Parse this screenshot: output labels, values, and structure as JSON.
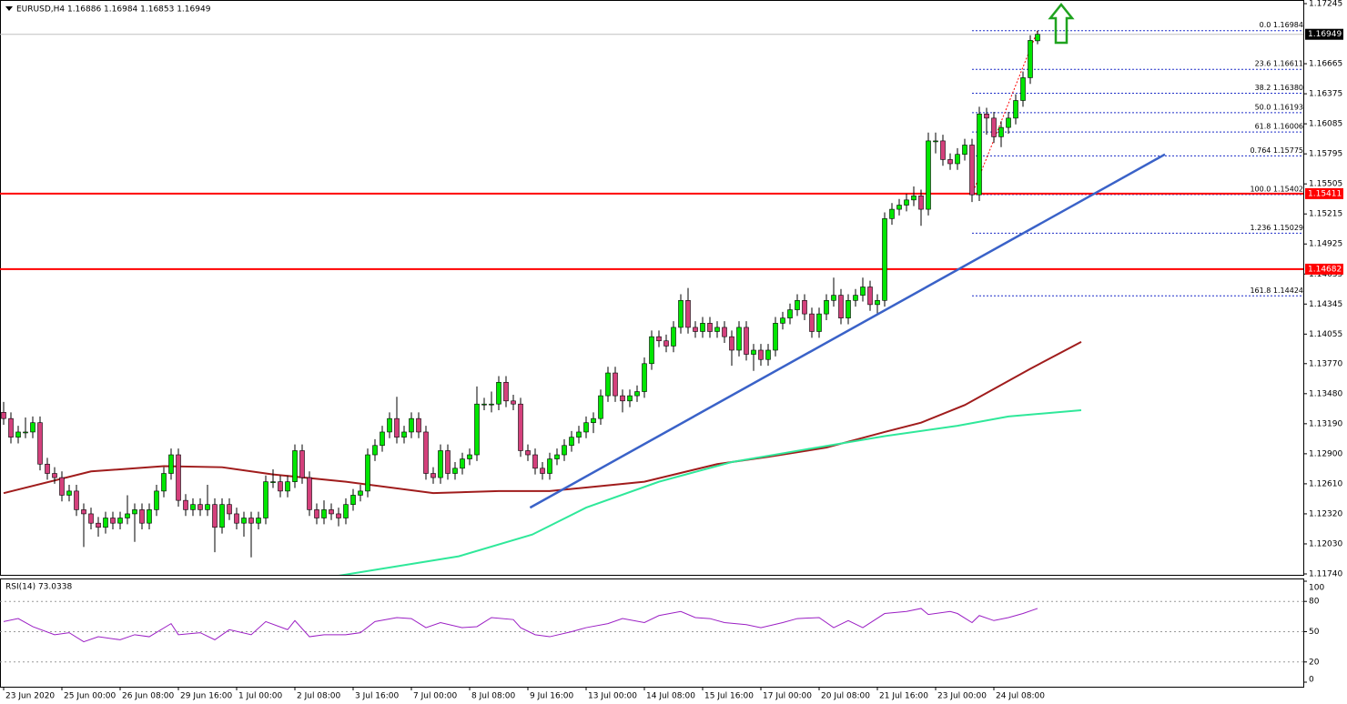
{
  "chart_data": {
    "type": "candlestick",
    "title": "EURUSD,H4 1.16886 1.16984 1.16853 1.16949",
    "bull_color": "#00e600",
    "bear_color": "#d4407c",
    "xlim": [
      -0.5,
      178.5
    ],
    "ylim": [
      1.1174,
      1.17245
    ],
    "yticks": [
      {
        "value": 1.17245,
        "label": "1.17245"
      },
      {
        "value": 1.16665,
        "label": "1.16665"
      },
      {
        "value": 1.16375,
        "label": "1.16375"
      },
      {
        "value": 1.16085,
        "label": "1.16085"
      },
      {
        "value": 1.15795,
        "label": "1.15795"
      },
      {
        "value": 1.15505,
        "label": "1.15505"
      },
      {
        "value": 1.15215,
        "label": "1.15215"
      },
      {
        "value": 1.14925,
        "label": "1.14925"
      },
      {
        "value": 1.14635,
        "label": "1.14635"
      },
      {
        "value": 1.14345,
        "label": "1.14345"
      },
      {
        "value": 1.14055,
        "label": "1.14055"
      },
      {
        "value": 1.1377,
        "label": "1.13770"
      },
      {
        "value": 1.1348,
        "label": "1.13480"
      },
      {
        "value": 1.1319,
        "label": "1.13190"
      },
      {
        "value": 1.129,
        "label": "1.12900"
      },
      {
        "value": 1.1261,
        "label": "1.12610"
      },
      {
        "value": 1.1232,
        "label": "1.12320"
      },
      {
        "value": 1.1203,
        "label": "1.12030"
      },
      {
        "value": 1.1174,
        "label": "1.11740"
      }
    ],
    "x_labels": [
      {
        "x": 0,
        "label": "23 Jun 2020"
      },
      {
        "x": 8,
        "label": "25 Jun 00:00"
      },
      {
        "x": 16,
        "label": "26 Jun 08:00"
      },
      {
        "x": 24,
        "label": "29 Jun 16:00"
      },
      {
        "x": 32,
        "label": "1 Jul 00:00"
      },
      {
        "x": 40,
        "label": "2 Jul 08:00"
      },
      {
        "x": 48,
        "label": "3 Jul 16:00"
      },
      {
        "x": 56,
        "label": "7 Jul 00:00"
      },
      {
        "x": 64,
        "label": "8 Jul 08:00"
      },
      {
        "x": 72,
        "label": "9 Jul 16:00"
      },
      {
        "x": 80,
        "label": "13 Jul 00:00"
      },
      {
        "x": 88,
        "label": "14 Jul 08:00"
      },
      {
        "x": 96,
        "label": "15 Jul 16:00"
      },
      {
        "x": 104,
        "label": "17 Jul 00:00"
      },
      {
        "x": 112,
        "label": "20 Jul 08:00"
      },
      {
        "x": 120,
        "label": "21 Jul 16:00"
      },
      {
        "x": 128,
        "label": "23 Jul 00:00"
      },
      {
        "x": 136,
        "label": "24 Jul 08:00"
      }
    ],
    "candles": [
      [
        1.133,
        1.134,
        1.1318,
        1.1324
      ],
      [
        1.1324,
        1.133,
        1.13,
        1.1306
      ],
      [
        1.1306,
        1.1317,
        1.13,
        1.1311
      ],
      [
        1.1311,
        1.1325,
        1.1305,
        1.1311
      ],
      [
        1.1311,
        1.1326,
        1.1305,
        1.132
      ],
      [
        1.132,
        1.1326,
        1.1274,
        1.128
      ],
      [
        1.128,
        1.1286,
        1.1265,
        1.1271
      ],
      [
        1.1271,
        1.1277,
        1.1261,
        1.1267
      ],
      [
        1.1267,
        1.1273,
        1.1244,
        1.125
      ],
      [
        1.125,
        1.126,
        1.1244,
        1.1254
      ],
      [
        1.1254,
        1.126,
        1.123,
        1.1236
      ],
      [
        1.1236,
        1.1242,
        1.12,
        1.1232
      ],
      [
        1.1232,
        1.1238,
        1.1217,
        1.1223
      ],
      [
        1.1223,
        1.1229,
        1.121,
        1.1219
      ],
      [
        1.1219,
        1.1234,
        1.1213,
        1.1228
      ],
      [
        1.1228,
        1.1234,
        1.1217,
        1.1223
      ],
      [
        1.1223,
        1.1234,
        1.1217,
        1.1228
      ],
      [
        1.1228,
        1.125,
        1.1222,
        1.1232
      ],
      [
        1.1232,
        1.1242,
        1.1205,
        1.1236
      ],
      [
        1.1236,
        1.1242,
        1.1217,
        1.1223
      ],
      [
        1.1223,
        1.1242,
        1.1217,
        1.1236
      ],
      [
        1.1236,
        1.126,
        1.123,
        1.1254
      ],
      [
        1.1254,
        1.1277,
        1.1248,
        1.1271
      ],
      [
        1.1271,
        1.1295,
        1.1265,
        1.1289
      ],
      [
        1.1289,
        1.1295,
        1.1239,
        1.1245
      ],
      [
        1.1245,
        1.1251,
        1.123,
        1.1236
      ],
      [
        1.1236,
        1.1247,
        1.123,
        1.1241
      ],
      [
        1.1241,
        1.1247,
        1.123,
        1.1236
      ],
      [
        1.1236,
        1.126,
        1.123,
        1.1241
      ],
      [
        1.1241,
        1.1247,
        1.1195,
        1.1219
      ],
      [
        1.1219,
        1.1247,
        1.1213,
        1.1241
      ],
      [
        1.1241,
        1.1247,
        1.1226,
        1.1232
      ],
      [
        1.1232,
        1.1238,
        1.1217,
        1.1223
      ],
      [
        1.1223,
        1.1234,
        1.121,
        1.1228
      ],
      [
        1.1228,
        1.1234,
        1.119,
        1.1223
      ],
      [
        1.1223,
        1.1234,
        1.1217,
        1.1228
      ],
      [
        1.1228,
        1.1269,
        1.1222,
        1.1263
      ],
      [
        1.1263,
        1.1275,
        1.1257,
        1.1263
      ],
      [
        1.1263,
        1.1269,
        1.1248,
        1.1254
      ],
      [
        1.1254,
        1.1269,
        1.1248,
        1.1263
      ],
      [
        1.1263,
        1.1299,
        1.1257,
        1.1293
      ],
      [
        1.1293,
        1.1299,
        1.1261,
        1.1267
      ],
      [
        1.1267,
        1.1273,
        1.123,
        1.1236
      ],
      [
        1.1236,
        1.1242,
        1.1222,
        1.1228
      ],
      [
        1.1228,
        1.1245,
        1.1222,
        1.1236
      ],
      [
        1.1236,
        1.1242,
        1.1226,
        1.1232
      ],
      [
        1.1232,
        1.1238,
        1.122,
        1.1228
      ],
      [
        1.1228,
        1.1247,
        1.1222,
        1.1241
      ],
      [
        1.1241,
        1.1256,
        1.1235,
        1.125
      ],
      [
        1.125,
        1.126,
        1.1244,
        1.1254
      ],
      [
        1.1254,
        1.1295,
        1.1248,
        1.1289
      ],
      [
        1.1289,
        1.1304,
        1.1283,
        1.1298
      ],
      [
        1.1298,
        1.1317,
        1.1292,
        1.1311
      ],
      [
        1.1311,
        1.133,
        1.1305,
        1.1324
      ],
      [
        1.1324,
        1.1345,
        1.13,
        1.1306
      ],
      [
        1.1306,
        1.1317,
        1.13,
        1.1311
      ],
      [
        1.1311,
        1.133,
        1.1305,
        1.1324
      ],
      [
        1.1324,
        1.133,
        1.1305,
        1.1311
      ],
      [
        1.1311,
        1.1317,
        1.1265,
        1.1271
      ],
      [
        1.1271,
        1.1277,
        1.1261,
        1.1267
      ],
      [
        1.1267,
        1.1299,
        1.1261,
        1.1293
      ],
      [
        1.1293,
        1.1299,
        1.1265,
        1.1271
      ],
      [
        1.1271,
        1.1282,
        1.1265,
        1.1276
      ],
      [
        1.1276,
        1.1291,
        1.127,
        1.1285
      ],
      [
        1.1285,
        1.1295,
        1.1279,
        1.1289
      ],
      [
        1.1289,
        1.1355,
        1.1283,
        1.1338
      ],
      [
        1.1338,
        1.1344,
        1.1332,
        1.1338
      ],
      [
        1.1338,
        1.135,
        1.133,
        1.1338
      ],
      [
        1.1338,
        1.1365,
        1.1332,
        1.1359
      ],
      [
        1.1359,
        1.1365,
        1.1335,
        1.1341
      ],
      [
        1.1341,
        1.1347,
        1.1332,
        1.1338
      ],
      [
        1.1338,
        1.1344,
        1.1287,
        1.1293
      ],
      [
        1.1293,
        1.1299,
        1.1283,
        1.1289
      ],
      [
        1.1289,
        1.1295,
        1.127,
        1.1276
      ],
      [
        1.1276,
        1.1282,
        1.1265,
        1.1271
      ],
      [
        1.1271,
        1.1291,
        1.1265,
        1.1285
      ],
      [
        1.1285,
        1.1295,
        1.1279,
        1.1289
      ],
      [
        1.1289,
        1.1304,
        1.1283,
        1.1298
      ],
      [
        1.1298,
        1.1312,
        1.1292,
        1.1306
      ],
      [
        1.1306,
        1.1317,
        1.13,
        1.1311
      ],
      [
        1.1311,
        1.1326,
        1.1305,
        1.132
      ],
      [
        1.132,
        1.133,
        1.131,
        1.1324
      ],
      [
        1.1324,
        1.1352,
        1.1318,
        1.1346
      ],
      [
        1.1346,
        1.1374,
        1.134,
        1.1368
      ],
      [
        1.1368,
        1.1374,
        1.134,
        1.1346
      ],
      [
        1.1346,
        1.1352,
        1.133,
        1.1341
      ],
      [
        1.1341,
        1.1352,
        1.1335,
        1.1346
      ],
      [
        1.1346,
        1.1356,
        1.134,
        1.135
      ],
      [
        1.135,
        1.1383,
        1.1344,
        1.1377
      ],
      [
        1.1377,
        1.1409,
        1.1371,
        1.1403
      ],
      [
        1.1403,
        1.1409,
        1.1393,
        1.1399
      ],
      [
        1.1399,
        1.1405,
        1.1388,
        1.1394
      ],
      [
        1.1394,
        1.1418,
        1.1388,
        1.1412
      ],
      [
        1.1412,
        1.1444,
        1.1406,
        1.1438
      ],
      [
        1.1438,
        1.145,
        1.1406,
        1.1412
      ],
      [
        1.1412,
        1.1418,
        1.1402,
        1.1408
      ],
      [
        1.1408,
        1.1422,
        1.1402,
        1.1416
      ],
      [
        1.1416,
        1.1422,
        1.1402,
        1.1408
      ],
      [
        1.1408,
        1.1418,
        1.1402,
        1.1412
      ],
      [
        1.1412,
        1.1418,
        1.1397,
        1.1403
      ],
      [
        1.1403,
        1.1409,
        1.1375,
        1.139
      ],
      [
        1.139,
        1.1418,
        1.1384,
        1.1412
      ],
      [
        1.1412,
        1.1418,
        1.138,
        1.1386
      ],
      [
        1.1386,
        1.1396,
        1.137,
        1.139
      ],
      [
        1.139,
        1.1396,
        1.1375,
        1.1381
      ],
      [
        1.1381,
        1.1396,
        1.1375,
        1.139
      ],
      [
        1.139,
        1.1422,
        1.1384,
        1.1416
      ],
      [
        1.1416,
        1.1427,
        1.141,
        1.1421
      ],
      [
        1.1421,
        1.1435,
        1.1415,
        1.1429
      ],
      [
        1.1429,
        1.1444,
        1.1423,
        1.1438
      ],
      [
        1.1438,
        1.1444,
        1.1419,
        1.1425
      ],
      [
        1.1425,
        1.1431,
        1.1402,
        1.1408
      ],
      [
        1.1408,
        1.1431,
        1.1402,
        1.1425
      ],
      [
        1.1425,
        1.1444,
        1.1419,
        1.1438
      ],
      [
        1.1438,
        1.146,
        1.1432,
        1.1443
      ],
      [
        1.1443,
        1.1449,
        1.1415,
        1.1421
      ],
      [
        1.1421,
        1.1444,
        1.1415,
        1.1438
      ],
      [
        1.1438,
        1.1449,
        1.1432,
        1.1443
      ],
      [
        1.1443,
        1.146,
        1.1437,
        1.1451
      ],
      [
        1.1451,
        1.1457,
        1.1428,
        1.1434
      ],
      [
        1.1434,
        1.1444,
        1.1425,
        1.1438
      ],
      [
        1.1438,
        1.1523,
        1.1432,
        1.1517
      ],
      [
        1.1517,
        1.1532,
        1.1511,
        1.1526
      ],
      [
        1.1526,
        1.1536,
        1.152,
        1.153
      ],
      [
        1.153,
        1.1541,
        1.1524,
        1.1535
      ],
      [
        1.1535,
        1.1548,
        1.1529,
        1.1539
      ],
      [
        1.1539,
        1.1545,
        1.151,
        1.1526
      ],
      [
        1.1526,
        1.16,
        1.152,
        1.1592
      ],
      [
        1.1592,
        1.16,
        1.158,
        1.1592
      ],
      [
        1.1592,
        1.1598,
        1.1568,
        1.1574
      ],
      [
        1.1574,
        1.158,
        1.1564,
        1.157
      ],
      [
        1.157,
        1.1585,
        1.1564,
        1.1579
      ],
      [
        1.1579,
        1.1594,
        1.1573,
        1.1588
      ],
      [
        1.1588,
        1.1594,
        1.1533,
        1.154
      ],
      [
        1.154,
        1.1625,
        1.1534,
        1.1618
      ],
      [
        1.1618,
        1.1624,
        1.1598,
        1.1614
      ],
      [
        1.1614,
        1.162,
        1.159,
        1.1596
      ],
      [
        1.1596,
        1.1611,
        1.1586,
        1.1605
      ],
      [
        1.1605,
        1.162,
        1.1599,
        1.1614
      ],
      [
        1.1614,
        1.1637,
        1.1608,
        1.1631
      ],
      [
        1.1631,
        1.1659,
        1.1625,
        1.1653
      ],
      [
        1.1653,
        1.1694,
        1.1647,
        1.1689
      ],
      [
        1.16886,
        1.16984,
        1.16853,
        1.16949
      ]
    ],
    "ma": [
      {
        "color": "#a01c1c",
        "x": [
          0,
          12,
          22,
          30,
          37,
          47,
          59,
          68,
          75,
          88,
          98,
          105,
          113,
          121,
          126,
          132,
          141,
          148
        ],
        "values": [
          1.1252,
          1.1273,
          1.1278,
          1.1277,
          1.127,
          1.1263,
          1.1252,
          1.1254,
          1.1254,
          1.1263,
          1.128,
          1.1287,
          1.1296,
          1.1311,
          1.132,
          1.1337,
          1.1372,
          1.1398
        ]
      },
      {
        "color": "#2fe89a",
        "x": [
          44,
          62.5,
          72.6,
          80,
          90,
          100,
          110,
          121,
          131,
          138,
          148
        ],
        "values": [
          1.117,
          1.1191,
          1.1212,
          1.1238,
          1.1263,
          1.1282,
          1.1294,
          1.1307,
          1.1317,
          1.1326,
          1.1332
        ]
      }
    ],
    "trendline": {
      "color": "#3a62c8",
      "x": [
        72.3,
        159.5
      ],
      "values": [
        1.1238,
        1.1579
      ]
    },
    "hlines": [
      {
        "value": 1.15411,
        "label": "1.15411",
        "color": "#ff0000"
      },
      {
        "value": 1.14682,
        "label": "1.14682",
        "color": "#ff0000"
      }
    ],
    "last_price": {
      "value": 1.16949,
      "label": "1.16949"
    },
    "fib": {
      "color": "#1e2fc8",
      "x": [
        133,
        142
      ],
      "levels": [
        {
          "label": "0.0 1.16984",
          "value": 1.16984
        },
        {
          "label": "23.6 1.16611",
          "value": 1.16611
        },
        {
          "label": "38.2 1.16380",
          "value": 1.1638
        },
        {
          "label": "50.0 1.16193",
          "value": 1.16193
        },
        {
          "label": "61.8 1.16006",
          "value": 1.16006
        },
        {
          "label": "0.764 1.15775",
          "value": 1.15775
        },
        {
          "label": "100.0 1.15402",
          "value": 1.15402
        },
        {
          "label": "1.236 1.15029",
          "value": 1.15029
        },
        {
          "label": "161.8 1.14424",
          "value": 1.14424
        }
      ]
    },
    "rsi": {
      "label": "RSI(14) 73.0338",
      "color": "#9b1fc4",
      "ylim": [
        0,
        100
      ],
      "yticks": [
        0,
        20,
        50,
        80,
        100
      ],
      "x": [
        0,
        2,
        4,
        7,
        9,
        11,
        13,
        16,
        18,
        20,
        23,
        24,
        27,
        29,
        31,
        34,
        36,
        39,
        40,
        42,
        44,
        47,
        49,
        51,
        54,
        56,
        58,
        60,
        63,
        65,
        67,
        70,
        71,
        73,
        75,
        78,
        80,
        83,
        85,
        88,
        90,
        93,
        95,
        97,
        99,
        102,
        104,
        107,
        109,
        112,
        114,
        116,
        118,
        121,
        124,
        126,
        127,
        130,
        131,
        133,
        134,
        136,
        138,
        140,
        142
      ],
      "values": [
        60,
        63,
        55,
        47,
        49,
        40,
        45,
        42,
        47,
        45,
        58,
        47,
        49,
        42,
        52,
        47,
        60,
        52,
        61,
        45,
        47,
        47,
        49,
        60,
        64,
        63,
        54,
        59,
        54,
        55,
        64,
        62,
        54,
        47,
        45,
        50,
        54,
        58,
        63,
        59,
        66,
        70,
        64,
        63,
        59,
        57,
        54,
        59,
        63,
        64,
        54,
        61,
        54,
        68,
        70,
        73,
        67,
        70,
        68,
        59,
        66,
        61,
        64,
        68,
        73.0338
      ]
    }
  }
}
